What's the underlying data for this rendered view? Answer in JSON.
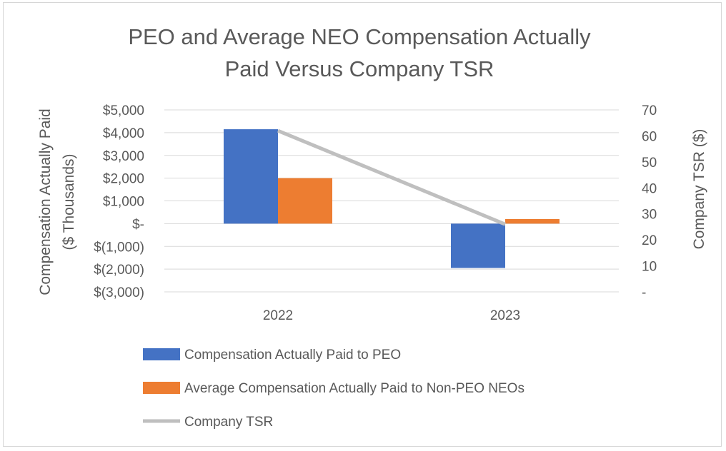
{
  "chart_data": {
    "type": "bar",
    "title_lines": [
      "PEO and Average NEO Compensation Actually",
      "Paid Versus Company TSR"
    ],
    "categories": [
      "2022",
      "2023"
    ],
    "series": [
      {
        "name": "Compensation Actually Paid to PEO",
        "kind": "bar",
        "axis": "left",
        "color": "#4472C4",
        "values": [
          4150,
          -1950
        ]
      },
      {
        "name": "Average Compensation Actually Paid to Non-PEO NEOs",
        "kind": "bar",
        "axis": "left",
        "color": "#ED7D31",
        "values": [
          2000,
          200
        ]
      },
      {
        "name": "Company TSR",
        "kind": "line",
        "axis": "right",
        "color": "#BFBFBF",
        "values": [
          62,
          26
        ]
      }
    ],
    "ylabel_left_lines": [
      "Compensation Actually Paid",
      "($ Thousands)"
    ],
    "ylabel_right": "Company TSR ($)",
    "ylim_left": [
      -3000,
      5000
    ],
    "ylim_right": [
      0,
      70
    ],
    "left_ticks": [
      {
        "value": 5000,
        "label": "$5,000"
      },
      {
        "value": 4000,
        "label": "$4,000"
      },
      {
        "value": 3000,
        "label": "$3,000"
      },
      {
        "value": 2000,
        "label": "$2,000"
      },
      {
        "value": 1000,
        "label": "$1,000"
      },
      {
        "value": 0,
        "label": "$-"
      },
      {
        "value": -1000,
        "label": "$(1,000)"
      },
      {
        "value": -2000,
        "label": "$(2,000)"
      },
      {
        "value": -3000,
        "label": "$(3,000)"
      }
    ],
    "right_ticks": [
      {
        "value": 70,
        "label": "70"
      },
      {
        "value": 60,
        "label": "60"
      },
      {
        "value": 50,
        "label": "50"
      },
      {
        "value": 40,
        "label": "40"
      },
      {
        "value": 30,
        "label": "30"
      },
      {
        "value": 20,
        "label": "20"
      },
      {
        "value": 10,
        "label": "10"
      },
      {
        "value": 0,
        "label": "-"
      }
    ],
    "grid": true,
    "legend_position": "bottom-left"
  }
}
